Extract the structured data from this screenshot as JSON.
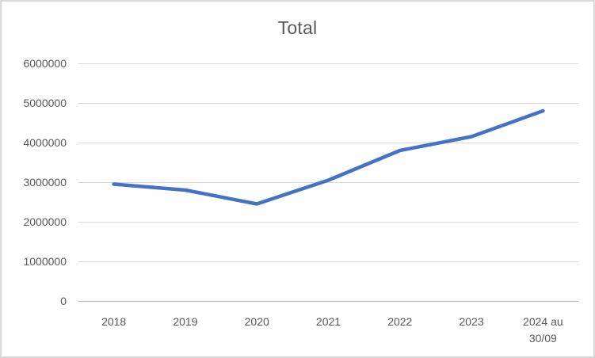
{
  "chart_data": {
    "type": "line",
    "title": "Total",
    "categories": [
      "2018",
      "2019",
      "2020",
      "2021",
      "2022",
      "2023",
      "2024 au\n30/09"
    ],
    "series": [
      {
        "name": "Total",
        "values": [
          2950000,
          2800000,
          2450000,
          3050000,
          3800000,
          4150000,
          4800000
        ]
      }
    ],
    "xlabel": "",
    "ylabel": "",
    "ylim": [
      0,
      6000000
    ],
    "y_ticks": [
      "6000000",
      "5000000",
      "4000000",
      "3000000",
      "2000000",
      "1000000",
      "0"
    ],
    "grid": true,
    "legend": "none",
    "colors": {
      "series_line": "#4472C4",
      "gridline": "#D9D9D9",
      "axis_line": "#BFBFBF",
      "text": "#595959",
      "border": "#D9D9D9",
      "background": "#FFFFFF"
    }
  }
}
